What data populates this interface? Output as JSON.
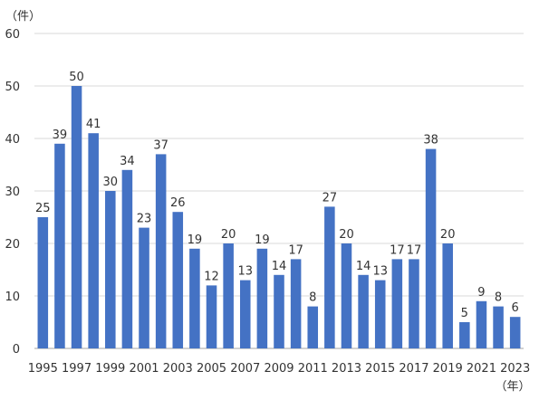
{
  "chart_data": {
    "type": "bar",
    "y_unit_label": "（件）",
    "x_unit_label": "（年）",
    "ylim": [
      0,
      60
    ],
    "y_ticks": [
      0,
      10,
      20,
      30,
      40,
      50,
      60
    ],
    "grid": true,
    "legend": "none",
    "bar_color": "#4472C4",
    "categories": [
      "1995",
      "1996",
      "1997",
      "1998",
      "1999",
      "2000",
      "2001",
      "2002",
      "2003",
      "2004",
      "2005",
      "2006",
      "2007",
      "2008",
      "2009",
      "2010",
      "2011",
      "2012",
      "2013",
      "2014",
      "2015",
      "2016",
      "2017",
      "2018",
      "2019",
      "2020",
      "2021",
      "2022",
      "2023"
    ],
    "x_tick_labels": [
      "1995",
      "1997",
      "1999",
      "2001",
      "2003",
      "2005",
      "2007",
      "2009",
      "2011",
      "2013",
      "2015",
      "2017",
      "2019",
      "2021",
      "2023"
    ],
    "values": [
      25,
      39,
      50,
      41,
      30,
      34,
      23,
      37,
      26,
      19,
      12,
      20,
      13,
      19,
      14,
      17,
      8,
      27,
      20,
      14,
      13,
      17,
      17,
      38,
      20,
      5,
      9,
      8,
      6
    ]
  }
}
